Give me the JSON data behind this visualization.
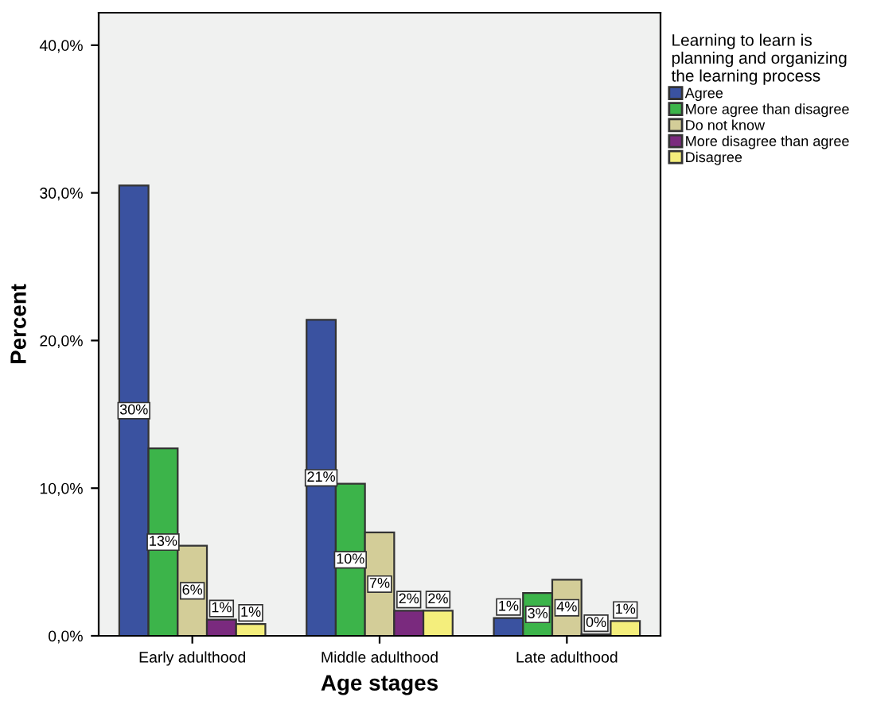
{
  "chart_data": {
    "type": "bar",
    "xlabel": "Age stages",
    "ylabel": "Percent",
    "legend_title": "Learning to learn is\nplanning and organizing\nthe learning process",
    "categories": [
      "Early adulthood",
      "Middle adulthood",
      "Late adulthood"
    ],
    "series": [
      {
        "name": "Agree",
        "color": "#3a52a0",
        "values": [
          30.5,
          21.4,
          1.2
        ],
        "value_labels": [
          "30%",
          "21%",
          "1%"
        ]
      },
      {
        "name": "More agree than disagree",
        "color": "#3cb44a",
        "values": [
          12.7,
          10.3,
          2.9
        ],
        "value_labels": [
          "13%",
          "10%",
          "3%"
        ]
      },
      {
        "name": "Do not know",
        "color": "#d3cd98",
        "values": [
          6.1,
          7.0,
          3.8
        ],
        "value_labels": [
          "6%",
          "7%",
          "4%"
        ]
      },
      {
        "name": "More disagree than agree",
        "color": "#7a2a7e",
        "values": [
          1.1,
          1.7,
          0.1
        ],
        "value_labels": [
          "1%",
          "2%",
          "0%"
        ]
      },
      {
        "name": "Disagree",
        "color": "#f4ee7c",
        "values": [
          0.8,
          1.7,
          1.0
        ],
        "value_labels": [
          "1%",
          "2%",
          "1%"
        ]
      }
    ],
    "ylim": [
      0,
      42.2
    ],
    "yticks": [
      {
        "value": 0,
        "label": "0,0%"
      },
      {
        "value": 10,
        "label": "10,0%"
      },
      {
        "value": 20,
        "label": "20,0%"
      },
      {
        "value": 30,
        "label": "30,0%"
      },
      {
        "value": 40,
        "label": "40,0%"
      }
    ],
    "grid": false,
    "legend": "top right"
  }
}
